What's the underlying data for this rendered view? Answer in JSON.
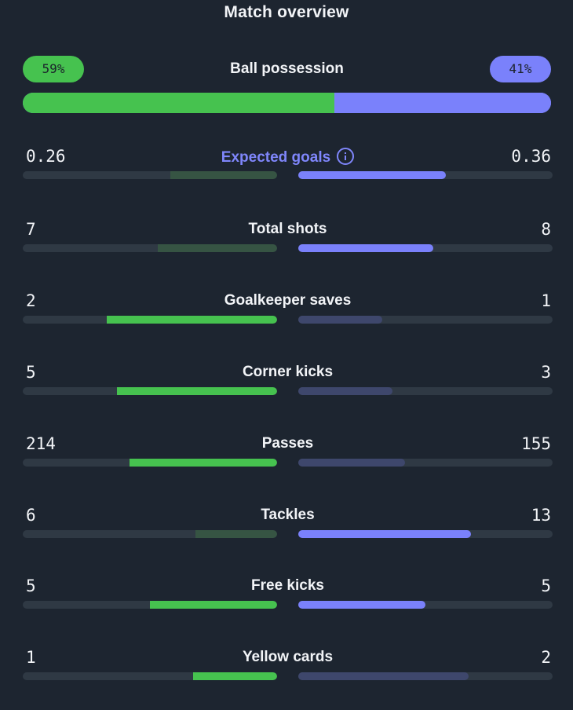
{
  "title": "Match overview",
  "colors": {
    "home_win": "#46c24f",
    "home_lose": "#365443",
    "away_win": "#7a81fb",
    "away_lose": "#3e476c",
    "track": "#2f3944",
    "background": "#1d2530"
  },
  "possession": {
    "label": "Ball possession",
    "home": "59%",
    "away": "41%",
    "home_share": 0.59,
    "away_share": 0.41
  },
  "stats": [
    {
      "label": "Expected goals",
      "home": "0.26",
      "away": "0.36",
      "home_fill": 0.42,
      "away_fill": 0.58,
      "leader": "away",
      "info_icon": "info-icon"
    },
    {
      "label": "Total shots",
      "home": "7",
      "away": "8",
      "home_fill": 0.47,
      "away_fill": 0.53,
      "leader": "away"
    },
    {
      "label": "Goalkeeper saves",
      "home": "2",
      "away": "1",
      "home_fill": 0.67,
      "away_fill": 0.33,
      "leader": "home"
    },
    {
      "label": "Corner kicks",
      "home": "5",
      "away": "3",
      "home_fill": 0.63,
      "away_fill": 0.37,
      "leader": "home"
    },
    {
      "label": "Passes",
      "home": "214",
      "away": "155",
      "home_fill": 0.58,
      "away_fill": 0.42,
      "leader": "home"
    },
    {
      "label": "Tackles",
      "home": "6",
      "away": "13",
      "home_fill": 0.32,
      "away_fill": 0.68,
      "leader": "away"
    },
    {
      "label": "Free kicks",
      "home": "5",
      "away": "5",
      "home_fill": 0.5,
      "away_fill": 0.5,
      "leader": "both"
    },
    {
      "label": "Yellow cards",
      "home": "1",
      "away": "2",
      "home_fill": 0.33,
      "away_fill": 0.67,
      "leader": "home"
    }
  ]
}
